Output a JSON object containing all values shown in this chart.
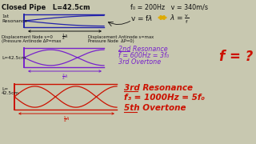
{
  "title_line1": "Closed Pipe   L=42.5cm",
  "title_line2": "f₀ = 200Hz   v = 340m/s",
  "res1_label": "1st\nResonance",
  "res2_label": "2nd Resonance",
  "res2_line2": "f = 600Hz = 3f₀",
  "res2_line3": "3rd Overtone",
  "res3_label": "3rd Resonance",
  "res3_line2": "f₃ = 1000Hz = 5f₀",
  "res3_line3": "5th Overtone",
  "node_label1": "Displacement Node s=0",
  "node_label1b": "(Pressure Antinode ΔP=max",
  "node_label2": "Displacement Antinode s=max",
  "node_label2b": "Pressure Node  ΔP=0)",
  "L_label2": "L=42.5cm",
  "L_label3a": "L=",
  "L_label3b": "42.5cm",
  "f_question": "f = ?",
  "bg_color": "#c8c8b0",
  "pipe1_color": "#2222aa",
  "pipe2_color": "#7722cc",
  "pipe3_color": "#cc1100",
  "text_color": "#111111",
  "res2_color": "#7722cc",
  "res3_color": "#cc1100",
  "arrow_color": "#ddaa00",
  "formula_color": "#111111"
}
